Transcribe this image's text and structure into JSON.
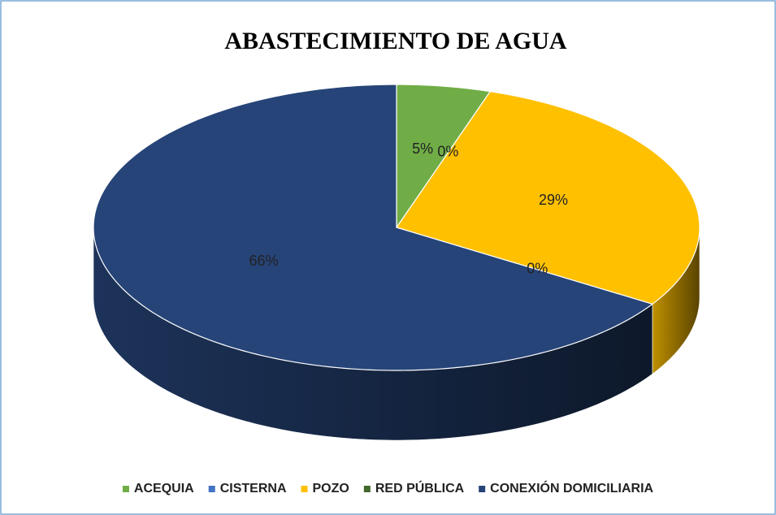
{
  "chart_data": {
    "type": "pie",
    "title": "ABASTECIMIENTO DE AGUA",
    "categories": [
      "ACEQUIA",
      "CISTERNA",
      "POZO",
      "RED PÚBLICA",
      "CONEXIÓN DOMICILIARIA"
    ],
    "values": [
      5,
      0,
      29,
      0,
      66
    ],
    "value_labels": [
      "5%",
      "0%",
      "29%",
      "0%",
      "66%"
    ],
    "colors": [
      "#70ad47",
      "#4472c4",
      "#ffc000",
      "#43682b",
      "#264478"
    ],
    "legend": "bottom"
  }
}
